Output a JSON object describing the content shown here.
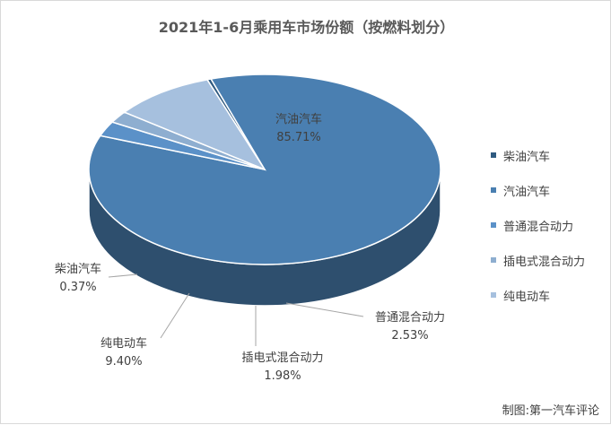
{
  "chart_data": {
    "type": "pie",
    "title": "2021年1-6月乘用车市场份额（按燃料划分）",
    "slices": [
      {
        "name": "柴油汽车",
        "label": "0.37%",
        "value": 0.37,
        "color": "#2f5a80"
      },
      {
        "name": "汽油汽车",
        "label": "85.71%",
        "value": 85.71,
        "color": "#4a7fb1"
      },
      {
        "name": "普通混合动力",
        "label": "2.53%",
        "value": 2.53,
        "color": "#5b91c8"
      },
      {
        "name": "插电式混合动力",
        "label": "1.98%",
        "value": 1.98,
        "color": "#8eaed0"
      },
      {
        "name": "纯电动车",
        "label": "9.40%",
        "value": 9.4,
        "color": "#a6c0de"
      }
    ],
    "legend_position": "right"
  },
  "source": "制图:第一汽车评论"
}
